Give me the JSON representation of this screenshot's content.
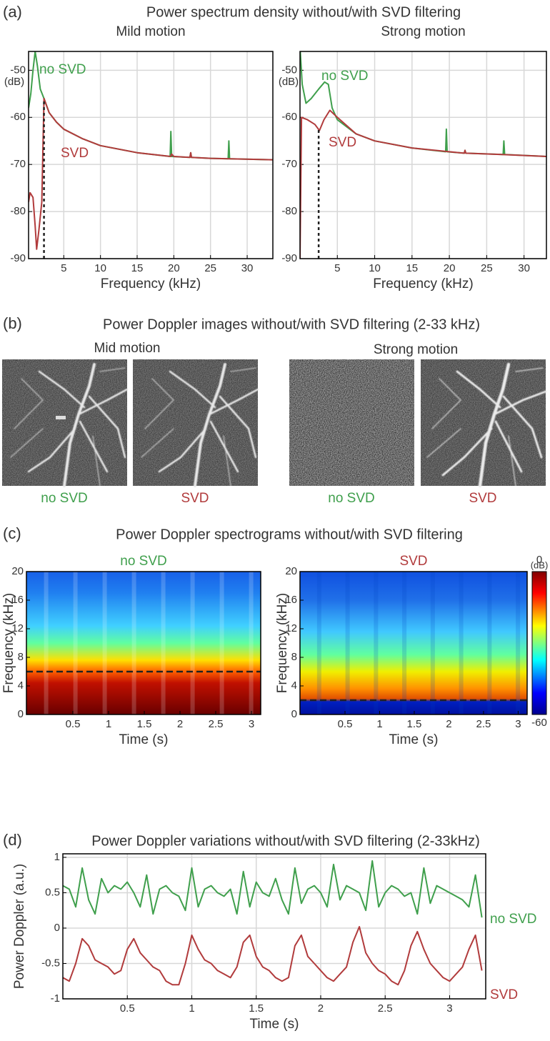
{
  "panels": [
    {
      "label": "(a)",
      "title": "Power spectrum density without/with SVD filtering"
    },
    {
      "label": "(b)",
      "title": "Power Doppler images without/with SVD filtering (2-33 kHz)"
    },
    {
      "label": "(c)",
      "title": "Power Doppler spectrograms without/with SVD filtering"
    },
    {
      "label": "(d)",
      "title": "Power Doppler variations without/with SVD filtering (2-33kHz)"
    }
  ],
  "images": {
    "subtitles": [
      "Mid motion",
      "Strong motion"
    ],
    "captions": [
      "no SVD",
      "SVD",
      "no SVD",
      "SVD"
    ]
  },
  "chart_data": [
    {
      "type": "line",
      "title": "Mild motion",
      "xlabel": "Frequency (kHz)",
      "y_unit": "(dB)",
      "xlim": [
        0.2,
        33.5
      ],
      "ylim": [
        -90,
        -46
      ],
      "xticks": [
        5,
        10,
        15,
        20,
        25,
        30
      ],
      "yticks": [
        -50,
        -60,
        -70,
        -80,
        -90
      ],
      "grid": true,
      "cutoff": 2.3,
      "series": [
        {
          "name": "no SVD",
          "color": "#3f9f4c",
          "x": [
            0.2,
            0.5,
            0.8,
            1.1,
            1.4,
            1.8,
            2.3,
            3,
            4,
            5,
            7.5,
            10,
            15,
            19.5,
            19.6,
            19.7,
            22.2,
            22.3,
            22.4,
            25,
            27.4,
            27.5,
            27.6,
            33.5
          ],
          "values": [
            -58,
            -55,
            -50,
            -46,
            -49,
            -54,
            -56,
            -59,
            -61,
            -62.5,
            -64.5,
            -66,
            -67.5,
            -68.3,
            -63,
            -68.3,
            -68.5,
            -67.5,
            -68.5,
            -68.7,
            -68.8,
            -65,
            -68.8,
            -69
          ]
        },
        {
          "name": "SVD",
          "color": "#b13b3c",
          "x": [
            0.2,
            0.4,
            0.8,
            1.1,
            1.3,
            1.6,
            2,
            2.3,
            3,
            4,
            5,
            7.5,
            10,
            15,
            19.6,
            19.7,
            20,
            22.2,
            22.3,
            22.4,
            25,
            33.5
          ],
          "values": [
            -78,
            -76,
            -77,
            -83,
            -88,
            -84,
            -78,
            -56,
            -59,
            -61,
            -62.5,
            -64.5,
            -66,
            -67.5,
            -68.3,
            -67.8,
            -68.3,
            -68.5,
            -67.5,
            -68.5,
            -68.7,
            -69
          ]
        }
      ]
    },
    {
      "type": "line",
      "title": "Strong motion",
      "xlabel": "Frequency (kHz)",
      "y_unit": "(dB)",
      "xlim": [
        0,
        33
      ],
      "ylim": [
        -90,
        -46
      ],
      "xticks": [
        5,
        10,
        15,
        20,
        25,
        30
      ],
      "yticks": [
        -50,
        -60,
        -70,
        -80,
        -90
      ],
      "grid": true,
      "cutoff": 2.5,
      "series": [
        {
          "name": "no SVD",
          "color": "#3f9f4c",
          "x": [
            0,
            0.3,
            0.8,
            1.5,
            2.5,
            3.3,
            3.8,
            4.3,
            5,
            7.5,
            10,
            15,
            19.5,
            19.6,
            19.7,
            22,
            22.1,
            22.2,
            27.2,
            27.3,
            27.4,
            33
          ],
          "values": [
            -45,
            -53,
            -57,
            -56,
            -54,
            -52.5,
            -53,
            -58,
            -60.5,
            -63.5,
            -65,
            -66.5,
            -67.3,
            -62.5,
            -67.3,
            -67.6,
            -67,
            -67.6,
            -67.9,
            -65,
            -67.9,
            -68.3
          ]
        },
        {
          "name": "SVD",
          "color": "#b13b3c",
          "x": [
            0,
            0.2,
            1,
            2,
            2.6,
            3.2,
            4,
            5,
            7.5,
            10,
            15,
            20,
            22,
            22.1,
            22.2,
            27,
            33
          ],
          "values": [
            -90,
            -60,
            -60.5,
            -61.5,
            -62.8,
            -60.5,
            -58.5,
            -60,
            -63.5,
            -65,
            -66.5,
            -67.3,
            -67.6,
            -67,
            -67.6,
            -67.9,
            -68.3
          ]
        }
      ]
    },
    {
      "type": "spectrogram",
      "title": "no SVD",
      "title_color": "#3f9f4c",
      "xlabel": "Time (s)",
      "ylabel": "Frequency (kHz)",
      "xlim": [
        -0.15,
        3.13
      ],
      "ylim": [
        0,
        20
      ],
      "xticks": [
        0.5,
        1,
        1.5,
        2,
        2.5,
        3
      ],
      "yticks": [
        0,
        4,
        8,
        12,
        16,
        20
      ],
      "threshold": 6
    },
    {
      "type": "spectrogram",
      "title": "SVD",
      "title_color": "#b13b3c",
      "xlabel": "Time (s)",
      "ylabel": "Frequency (kHz)",
      "xlim": [
        -0.15,
        3.13
      ],
      "ylim": [
        0,
        20
      ],
      "xticks": [
        0.5,
        1,
        1.5,
        2,
        2.5,
        3
      ],
      "yticks": [
        0,
        4,
        8,
        12,
        16,
        20
      ],
      "threshold": 2,
      "colorbar": {
        "clim": [
          -60,
          0
        ],
        "ticks": [
          0,
          -60
        ],
        "unit": "(dB)"
      }
    },
    {
      "type": "line",
      "xlabel": "Time (s)",
      "ylabel": "Power Doppler (a.u.)",
      "xlim": [
        0,
        3.28
      ],
      "ylim": [
        -1,
        1.05
      ],
      "xticks": [
        0.5,
        1,
        1.5,
        2,
        2.5,
        3
      ],
      "yticks": [
        1,
        0.5,
        0,
        -0.5,
        -1
      ],
      "grid": true,
      "x": [
        0,
        0.05,
        0.1,
        0.15,
        0.2,
        0.25,
        0.3,
        0.35,
        0.4,
        0.45,
        0.5,
        0.55,
        0.6,
        0.65,
        0.7,
        0.75,
        0.8,
        0.85,
        0.9,
        0.95,
        1,
        1.05,
        1.1,
        1.15,
        1.2,
        1.25,
        1.3,
        1.35,
        1.4,
        1.45,
        1.5,
        1.55,
        1.6,
        1.65,
        1.7,
        1.75,
        1.8,
        1.85,
        1.9,
        1.95,
        2,
        2.05,
        2.1,
        2.15,
        2.2,
        2.25,
        2.3,
        2.35,
        2.4,
        2.45,
        2.5,
        2.55,
        2.6,
        2.65,
        2.7,
        2.75,
        2.8,
        2.85,
        2.9,
        2.95,
        3,
        3.05,
        3.1,
        3.15,
        3.2,
        3.25
      ],
      "series": [
        {
          "name": "no SVD",
          "color": "#3f9f4c",
          "values": [
            0.6,
            0.55,
            0.3,
            0.85,
            0.4,
            0.2,
            0.7,
            0.5,
            0.6,
            0.55,
            0.65,
            0.5,
            0.3,
            0.75,
            0.2,
            0.55,
            0.6,
            0.5,
            0.45,
            0.25,
            0.85,
            0.3,
            0.55,
            0.6,
            0.5,
            0.45,
            0.55,
            0.2,
            0.8,
            0.3,
            0.65,
            0.5,
            0.45,
            0.7,
            0.4,
            0.2,
            0.85,
            0.35,
            0.55,
            0.6,
            0.5,
            0.3,
            0.9,
            0.4,
            0.6,
            0.55,
            0.5,
            0.25,
            0.95,
            0.3,
            0.5,
            0.6,
            0.55,
            0.45,
            0.5,
            0.2,
            0.85,
            0.35,
            0.6,
            0.55,
            0.5,
            0.45,
            0.4,
            0.3,
            0.75,
            0.15
          ]
        },
        {
          "name": "SVD",
          "color": "#b13b3c",
          "values": [
            -0.7,
            -0.75,
            -0.5,
            -0.15,
            -0.25,
            -0.45,
            -0.5,
            -0.55,
            -0.65,
            -0.6,
            -0.3,
            -0.15,
            -0.35,
            -0.45,
            -0.55,
            -0.6,
            -0.75,
            -0.8,
            -0.8,
            -0.5,
            -0.1,
            -0.3,
            -0.45,
            -0.5,
            -0.6,
            -0.65,
            -0.7,
            -0.55,
            -0.2,
            -0.1,
            -0.4,
            -0.55,
            -0.6,
            -0.7,
            -0.75,
            -0.7,
            -0.25,
            -0.1,
            -0.4,
            -0.5,
            -0.6,
            -0.7,
            -0.75,
            -0.65,
            -0.55,
            -0.2,
            0.02,
            -0.35,
            -0.5,
            -0.6,
            -0.65,
            -0.75,
            -0.8,
            -0.6,
            -0.25,
            -0.05,
            -0.3,
            -0.5,
            -0.6,
            -0.7,
            -0.75,
            -0.65,
            -0.55,
            -0.3,
            -0.1,
            -0.6
          ]
        }
      ]
    }
  ]
}
